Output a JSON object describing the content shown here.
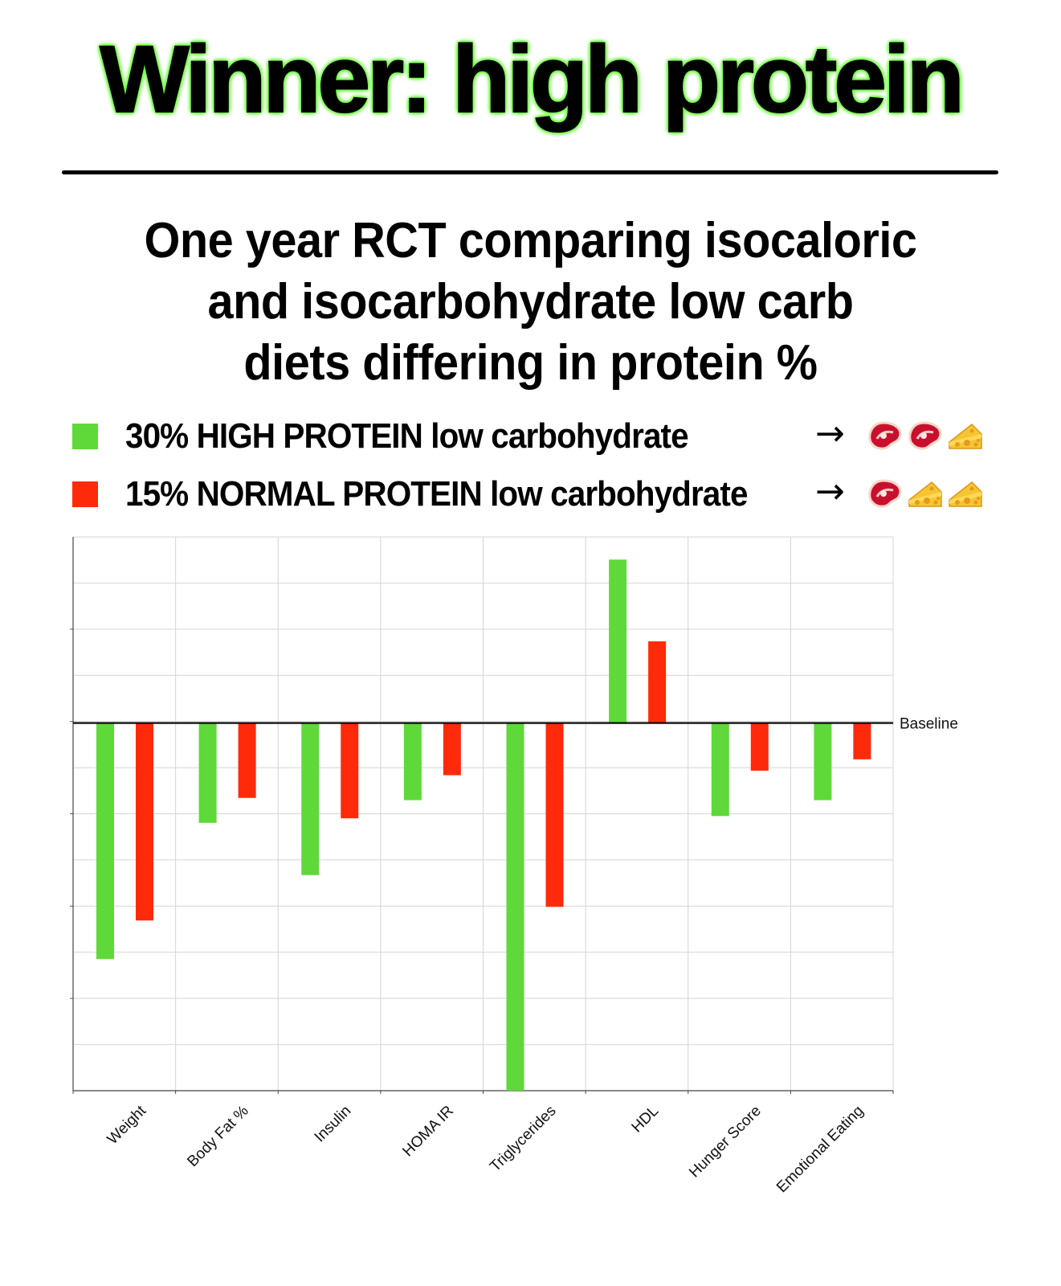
{
  "header": {
    "winner_title": "Winner:  high protein",
    "subtitle_lines": [
      "One year RCT comparing isocaloric",
      "and isocarbohydrate low carb",
      "diets differing in protein %"
    ]
  },
  "legend": {
    "arrow": "→",
    "items": [
      {
        "label": "30% HIGH PROTEIN low carbohydrate",
        "color": "#5fd93a",
        "foods": [
          "steak-icon",
          "steak-icon",
          "cheese-icon"
        ]
      },
      {
        "label": "15% NORMAL PROTEIN low carbohydrate",
        "color": "#ff2a0a",
        "foods": [
          "steak-icon",
          "cheese-icon",
          "cheese-icon"
        ]
      }
    ]
  },
  "colors": {
    "high_protein": "#5fd93a",
    "normal_protein": "#ff2a0a",
    "grid": "#d4d4d4",
    "axis": "#000000"
  },
  "chart_data": {
    "type": "bar",
    "title": "",
    "xlabel": "",
    "ylabel": "",
    "baseline_label": "Baseline",
    "categories": [
      "Weight",
      "Body Fat %",
      "Insulin",
      "HOMA IR",
      "Triglycerides",
      "HDL",
      "Hunger Score",
      "Emotional Eating"
    ],
    "series": [
      {
        "name": "30% HIGH PROTEIN low carbohydrate",
        "values": [
          -5.2,
          -2.2,
          -3.35,
          -1.7,
          -8.1,
          3.6,
          -2.05,
          -1.7
        ]
      },
      {
        "name": "15% NORMAL PROTEIN low carbohydrate",
        "values": [
          -4.35,
          -1.65,
          -2.1,
          -1.15,
          -4.05,
          1.8,
          -1.05,
          -0.8
        ]
      }
    ],
    "ylim": [
      -8.1,
      4.1
    ],
    "grid": true
  }
}
